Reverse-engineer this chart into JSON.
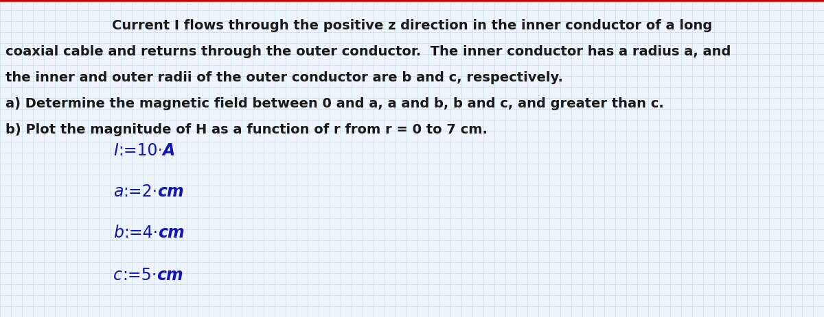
{
  "background_color": "#eef4fb",
  "grid_color": "#c5d8ed",
  "top_bar_color": "#cc0000",
  "text_color_black": "#1a1a1a",
  "text_color_blue": "#1414b4",
  "title_line1": "Current I flows through the positive z direction in the inner conductor of a long",
  "title_line2": "coaxial cable and returns through the outer conductor.  The inner conductor has a radius a, and",
  "title_line3": "the inner and outer radii of the outer conductor are b and c, respectively.",
  "title_line4": "a) Determine the magnetic field between 0 and a, a and b, b and c, and greater than c.",
  "title_line5": "b) Plot the magnitude of H as a function of r from r = 0 to 7 cm.",
  "fig_width": 12.0,
  "fig_height": 4.64,
  "dpi": 100
}
